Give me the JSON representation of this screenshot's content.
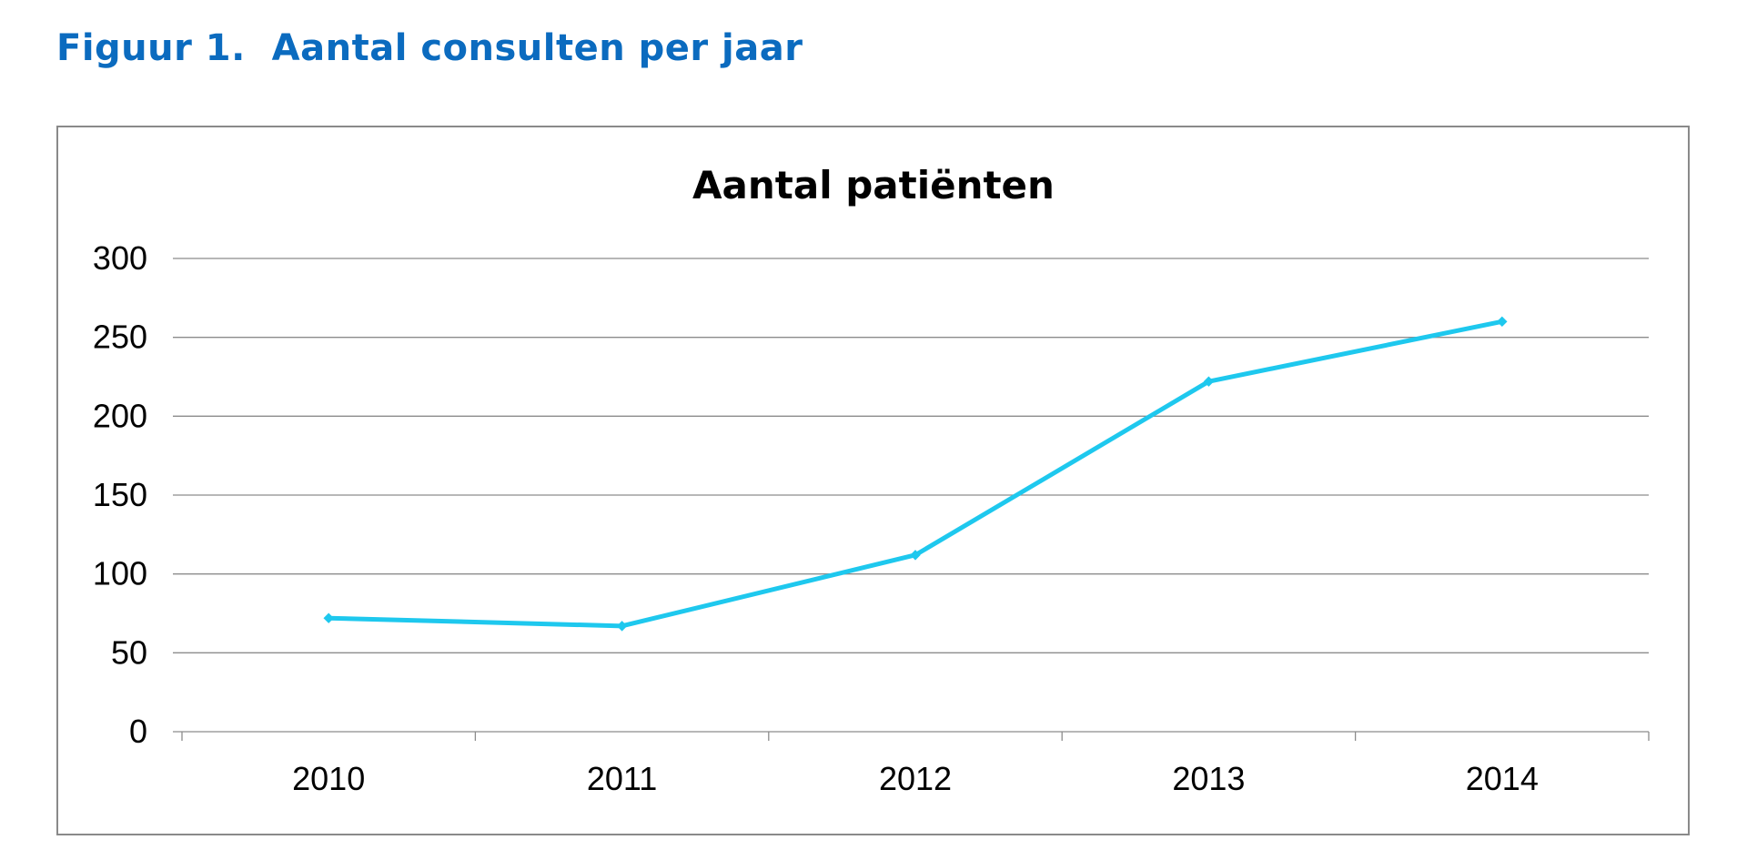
{
  "figure": {
    "caption": "Figuur 1.  Aantal consulten per jaar",
    "caption_color": "#0b6bbf"
  },
  "chart_data": {
    "type": "line",
    "title": "Aantal patiënten",
    "xlabel": "",
    "ylabel": "",
    "categories": [
      "2010",
      "2011",
      "2012",
      "2013",
      "2014"
    ],
    "series": [
      {
        "values": [
          72,
          67,
          112,
          222,
          260
        ],
        "color": "#1ec8ee",
        "marker": "diamond"
      }
    ],
    "ylim": [
      0,
      300
    ],
    "yticks": [
      0,
      50,
      100,
      150,
      200,
      250,
      300
    ],
    "grid": true,
    "legend": "none"
  }
}
